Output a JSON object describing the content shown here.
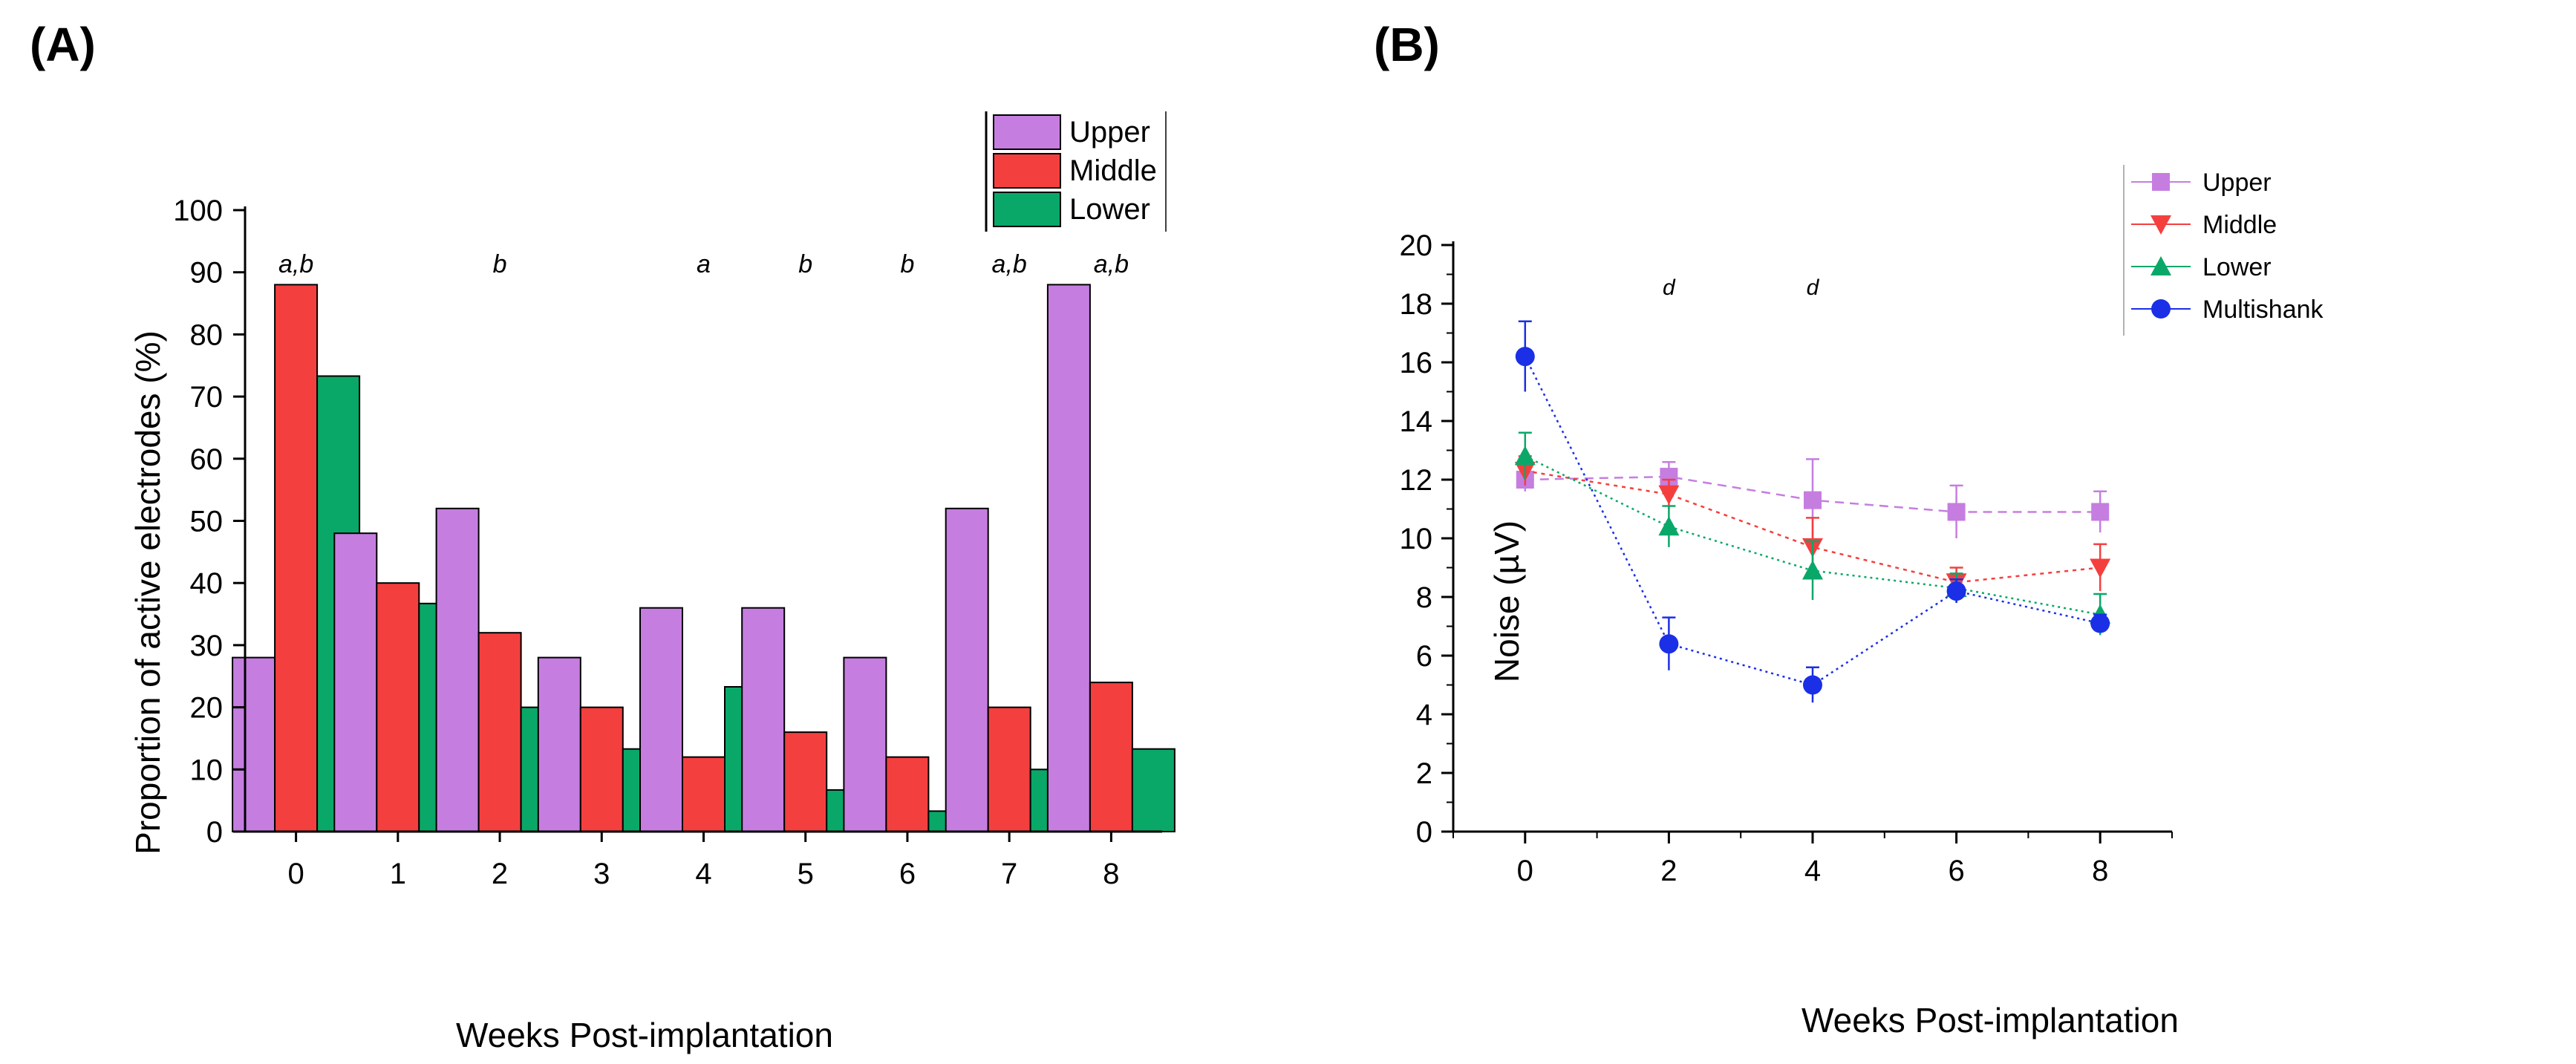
{
  "chart_data": [
    {
      "panel_label": "(A)",
      "type": "bar",
      "xlabel": "Weeks Post-implantation",
      "ylabel": "Proportion of active electrodes (%)",
      "ylim": [
        0,
        100
      ],
      "yticks": [
        0,
        10,
        20,
        30,
        40,
        50,
        60,
        70,
        80,
        90,
        100
      ],
      "categories": [
        "0",
        "1",
        "2",
        "3",
        "4",
        "5",
        "6",
        "7",
        "8"
      ],
      "series": [
        {
          "name": "Upper",
          "color": "#c57ee0",
          "values": [
            28,
            48,
            52,
            28,
            36,
            36,
            28,
            52,
            88
          ]
        },
        {
          "name": "Middle",
          "color": "#f43f3f",
          "values": [
            88,
            40,
            32,
            20,
            12,
            16,
            12,
            20,
            24
          ]
        },
        {
          "name": "Lower",
          "color": "#0aa868",
          "values": [
            73.3,
            36.7,
            20,
            13.3,
            23.3,
            6.7,
            3.3,
            10,
            13.3
          ]
        }
      ],
      "annotations": [
        "a,b",
        "",
        "b",
        "",
        "a",
        "b",
        "b",
        "a,b",
        "a,b"
      ],
      "legend_position": "top-right"
    },
    {
      "panel_label": "(B)",
      "type": "line",
      "xlabel": "Weeks Post-implantation",
      "ylabel": "Noise (µV)",
      "ylim": [
        0,
        20
      ],
      "yticks": [
        0,
        2,
        4,
        6,
        8,
        10,
        12,
        14,
        16,
        18,
        20
      ],
      "xlim": [
        -1,
        9
      ],
      "xticks": [
        0,
        2,
        4,
        6,
        8
      ],
      "x": [
        0,
        2,
        4,
        6,
        8
      ],
      "series": [
        {
          "name": "Upper",
          "color": "#c57ee0",
          "marker": "square",
          "values": [
            12.0,
            12.1,
            11.3,
            10.9,
            10.9
          ],
          "errors": [
            0.4,
            0.5,
            1.4,
            0.9,
            0.7
          ]
        },
        {
          "name": "Middle",
          "color": "#f43f3f",
          "marker": "triangle-down",
          "values": [
            12.3,
            11.5,
            9.7,
            8.5,
            9.0
          ],
          "errors": [
            0.5,
            0.5,
            1.0,
            0.5,
            0.8
          ]
        },
        {
          "name": "Lower",
          "color": "#0aa868",
          "marker": "triangle-up",
          "values": [
            12.8,
            10.4,
            8.9,
            8.3,
            7.4
          ],
          "errors": [
            0.8,
            0.7,
            1.0,
            0.5,
            0.7
          ]
        },
        {
          "name": "Multishank",
          "color": "#1a2fe6",
          "marker": "circle",
          "values": [
            16.2,
            6.4,
            5.0,
            8.2,
            7.1
          ],
          "errors": [
            1.2,
            0.9,
            0.6,
            0.4,
            0.3
          ]
        }
      ],
      "annotations": [
        {
          "x": 2,
          "text": "d"
        },
        {
          "x": 4,
          "text": "d"
        }
      ],
      "legend_position": "top-right"
    }
  ]
}
